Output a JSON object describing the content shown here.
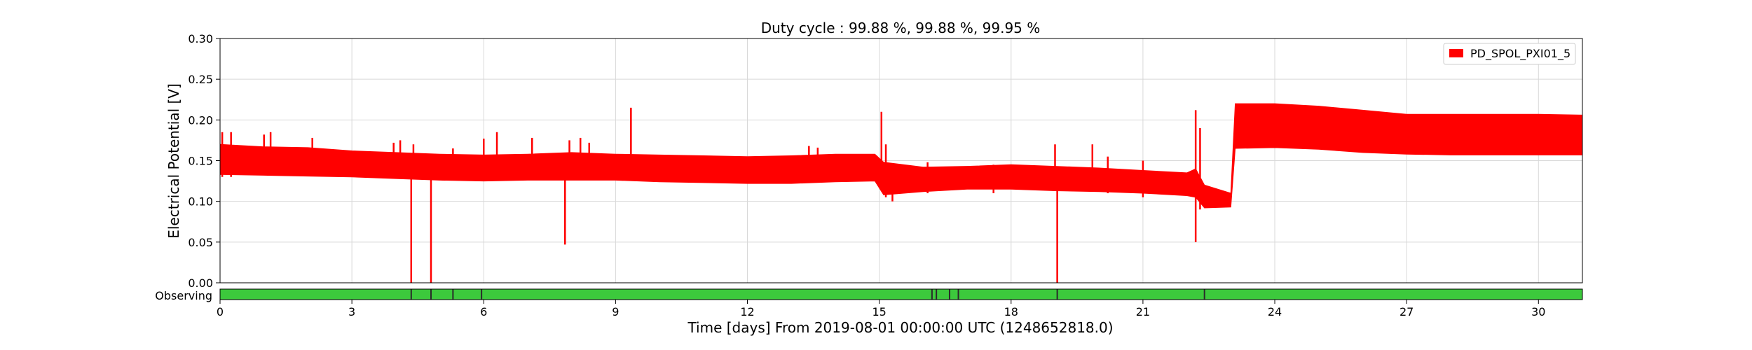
{
  "chart_data": {
    "type": "line",
    "title": "Duty cycle : 99.88 %, 99.88 %, 99.95 %",
    "xlabel": "Time [days] From 2019-08-01 00:00:00 UTC (1248652818.0)",
    "ylabel": "Electrical Potential [V]",
    "xlim": [
      0,
      31
    ],
    "ylim": [
      0,
      0.3
    ],
    "x_ticks": [
      0,
      3,
      6,
      9,
      12,
      15,
      18,
      21,
      24,
      27,
      30
    ],
    "y_ticks": [
      "0.00",
      "0.05",
      "0.10",
      "0.15",
      "0.20",
      "0.25",
      "0.30"
    ],
    "grid": true,
    "legend_position": "top-right",
    "colors": {
      "series": "#ff0000",
      "observing": "#3cc93c",
      "gap": "#2a2a2a",
      "grid": "#d8d8d8"
    },
    "series": [
      {
        "name": "PD_SPOL_PXI01_5",
        "band": [
          {
            "x": 0.0,
            "low": 0.133,
            "high": 0.17
          },
          {
            "x": 1.0,
            "low": 0.132,
            "high": 0.167
          },
          {
            "x": 2.0,
            "low": 0.131,
            "high": 0.166
          },
          {
            "x": 3.0,
            "low": 0.13,
            "high": 0.162
          },
          {
            "x": 4.0,
            "low": 0.128,
            "high": 0.16
          },
          {
            "x": 5.0,
            "low": 0.126,
            "high": 0.158
          },
          {
            "x": 6.0,
            "low": 0.125,
            "high": 0.157
          },
          {
            "x": 7.0,
            "low": 0.126,
            "high": 0.158
          },
          {
            "x": 8.0,
            "low": 0.126,
            "high": 0.16
          },
          {
            "x": 9.0,
            "low": 0.126,
            "high": 0.158
          },
          {
            "x": 10.0,
            "low": 0.124,
            "high": 0.157
          },
          {
            "x": 11.0,
            "low": 0.123,
            "high": 0.156
          },
          {
            "x": 12.0,
            "low": 0.122,
            "high": 0.155
          },
          {
            "x": 13.0,
            "low": 0.122,
            "high": 0.156
          },
          {
            "x": 14.0,
            "low": 0.124,
            "high": 0.158
          },
          {
            "x": 14.9,
            "low": 0.125,
            "high": 0.158
          },
          {
            "x": 15.1,
            "low": 0.108,
            "high": 0.148
          },
          {
            "x": 16.0,
            "low": 0.112,
            "high": 0.142
          },
          {
            "x": 17.0,
            "low": 0.115,
            "high": 0.143
          },
          {
            "x": 18.0,
            "low": 0.115,
            "high": 0.145
          },
          {
            "x": 19.0,
            "low": 0.113,
            "high": 0.143
          },
          {
            "x": 20.0,
            "low": 0.112,
            "high": 0.141
          },
          {
            "x": 21.0,
            "low": 0.11,
            "high": 0.138
          },
          {
            "x": 22.0,
            "low": 0.107,
            "high": 0.135
          },
          {
            "x": 22.2,
            "low": 0.105,
            "high": 0.14
          },
          {
            "x": 22.4,
            "low": 0.092,
            "high": 0.12
          },
          {
            "x": 23.0,
            "low": 0.093,
            "high": 0.11
          },
          {
            "x": 23.1,
            "low": 0.165,
            "high": 0.22
          },
          {
            "x": 24.0,
            "low": 0.166,
            "high": 0.22
          },
          {
            "x": 25.0,
            "low": 0.164,
            "high": 0.217
          },
          {
            "x": 26.0,
            "low": 0.16,
            "high": 0.212
          },
          {
            "x": 27.0,
            "low": 0.158,
            "high": 0.207
          },
          {
            "x": 28.0,
            "low": 0.157,
            "high": 0.207
          },
          {
            "x": 29.0,
            "low": 0.157,
            "high": 0.207
          },
          {
            "x": 30.0,
            "low": 0.157,
            "high": 0.207
          },
          {
            "x": 31.0,
            "low": 0.157,
            "high": 0.206
          }
        ],
        "spikes": [
          {
            "x": 0.05,
            "low": 0.13,
            "high": 0.185
          },
          {
            "x": 0.25,
            "low": 0.13,
            "high": 0.185
          },
          {
            "x": 1.0,
            "low": 0.14,
            "high": 0.182
          },
          {
            "x": 1.15,
            "low": 0.14,
            "high": 0.185
          },
          {
            "x": 2.1,
            "low": 0.14,
            "high": 0.178
          },
          {
            "x": 3.95,
            "low": 0.14,
            "high": 0.172
          },
          {
            "x": 4.1,
            "low": 0.14,
            "high": 0.175
          },
          {
            "x": 4.35,
            "low": 0.0,
            "high": 0.14
          },
          {
            "x": 4.4,
            "low": 0.14,
            "high": 0.17
          },
          {
            "x": 4.8,
            "low": 0.0,
            "high": 0.14
          },
          {
            "x": 5.3,
            "low": 0.14,
            "high": 0.165
          },
          {
            "x": 6.0,
            "low": 0.13,
            "high": 0.177
          },
          {
            "x": 6.3,
            "low": 0.13,
            "high": 0.185
          },
          {
            "x": 7.1,
            "low": 0.13,
            "high": 0.178
          },
          {
            "x": 7.85,
            "low": 0.047,
            "high": 0.13
          },
          {
            "x": 7.95,
            "low": 0.13,
            "high": 0.175
          },
          {
            "x": 8.2,
            "low": 0.13,
            "high": 0.178
          },
          {
            "x": 8.4,
            "low": 0.13,
            "high": 0.172
          },
          {
            "x": 9.35,
            "low": 0.14,
            "high": 0.215
          },
          {
            "x": 13.4,
            "low": 0.13,
            "high": 0.168
          },
          {
            "x": 13.6,
            "low": 0.13,
            "high": 0.166
          },
          {
            "x": 15.05,
            "low": 0.14,
            "high": 0.21
          },
          {
            "x": 15.15,
            "low": 0.105,
            "high": 0.17
          },
          {
            "x": 15.3,
            "low": 0.1,
            "high": 0.14
          },
          {
            "x": 16.1,
            "low": 0.11,
            "high": 0.148
          },
          {
            "x": 17.6,
            "low": 0.11,
            "high": 0.145
          },
          {
            "x": 19.0,
            "low": 0.12,
            "high": 0.17
          },
          {
            "x": 19.05,
            "low": 0.0,
            "high": 0.12
          },
          {
            "x": 19.85,
            "low": 0.12,
            "high": 0.17
          },
          {
            "x": 20.2,
            "low": 0.11,
            "high": 0.155
          },
          {
            "x": 21.0,
            "low": 0.105,
            "high": 0.15
          },
          {
            "x": 22.2,
            "low": 0.05,
            "high": 0.212
          },
          {
            "x": 22.3,
            "low": 0.09,
            "high": 0.19
          }
        ]
      }
    ],
    "state_bar": {
      "label": "Observing",
      "gaps": [
        4.35,
        4.8,
        5.3,
        5.95,
        16.2,
        16.3,
        16.6,
        16.8,
        19.05,
        22.4
      ]
    }
  }
}
